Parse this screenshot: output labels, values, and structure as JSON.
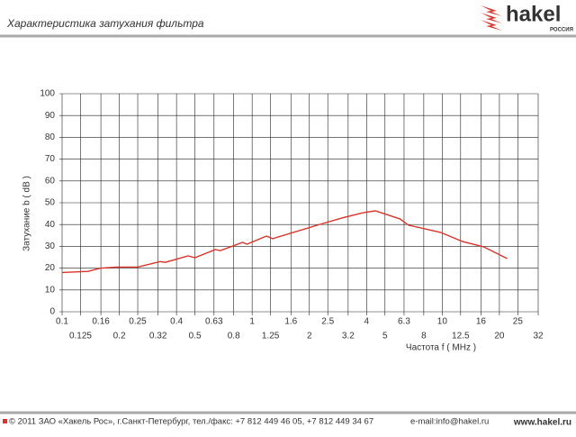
{
  "header": {
    "title": "Характеристика затухания фильтра",
    "logo": "hakel",
    "logo_country": "РОССИЯ"
  },
  "chart_data": {
    "type": "line",
    "ylabel": "Затухание b  ( dB )",
    "xlabel": "Частота f ( MHz )",
    "x": [
      0.1,
      0.137,
      0.151,
      0.16,
      0.194,
      0.25,
      0.327,
      0.35,
      0.46,
      0.5,
      0.64,
      0.68,
      0.89,
      0.94,
      1.19,
      1.28,
      2.36,
      2.97,
      3.87,
      4.45,
      5.99,
      6.65,
      9.8,
      12.8,
      16.5,
      22
    ],
    "series": [
      {
        "color": "#d9342b",
        "values": [
          18,
          18.5,
          19.5,
          20,
          20.5,
          20.5,
          23,
          22.7,
          25.6,
          24.8,
          28.5,
          28,
          31.8,
          31,
          34.7,
          33.5,
          40.5,
          43,
          45.5,
          46.3,
          42.6,
          39.7,
          36.4,
          32.2,
          29.8,
          24.4
        ]
      }
    ],
    "log_x": true,
    "xlim": [
      0.1,
      32
    ],
    "xticks": [
      0.1,
      0.125,
      0.16,
      0.2,
      0.25,
      0.32,
      0.4,
      0.5,
      0.63,
      0.8,
      1,
      1.25,
      1.6,
      2,
      2.5,
      3.2,
      4,
      5,
      6.3,
      8,
      10,
      12.5,
      16,
      20,
      25,
      32
    ],
    "ylim": [
      0,
      100
    ],
    "yticks": [
      0,
      10,
      20,
      30,
      40,
      50,
      60,
      70,
      80,
      90,
      100
    ],
    "grid": true
  },
  "footer": {
    "copyright": "© 2011 ЗАО «Хакель Рос», г.Санкт-Петербург, тел./факс: +7 812 449 46 05, +7 812 449 34 67",
    "email": "e-mail:info@hakel.ru",
    "website": "www.hakel.ru"
  }
}
